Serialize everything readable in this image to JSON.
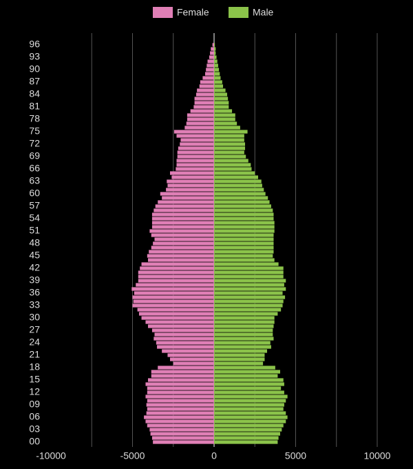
{
  "chart_data": {
    "type": "bar",
    "orientation": "horizontal",
    "categories": [
      "00",
      null,
      null,
      "03",
      null,
      null,
      "06",
      null,
      null,
      "09",
      null,
      null,
      "12",
      null,
      null,
      "15",
      null,
      null,
      "18",
      null,
      null,
      "21",
      null,
      null,
      "24",
      null,
      null,
      "27",
      null,
      null,
      "30",
      null,
      null,
      "33",
      null,
      null,
      "36",
      null,
      null,
      "39",
      null,
      null,
      "42",
      null,
      null,
      "45",
      null,
      null,
      "48",
      null,
      null,
      "51",
      null,
      null,
      "54",
      null,
      null,
      "57",
      null,
      null,
      "60",
      null,
      null,
      "63",
      null,
      null,
      "66",
      null,
      null,
      "69",
      null,
      null,
      "72",
      null,
      null,
      "75",
      null,
      null,
      "78",
      null,
      null,
      "81",
      null,
      null,
      "84",
      null,
      null,
      "87",
      null,
      null,
      "90",
      null,
      null,
      "93",
      null,
      null,
      "96"
    ],
    "series": [
      {
        "name": "Female",
        "color": "#e07fb6",
        "values": [
          -3750,
          -3800,
          -3900,
          -3950,
          -4100,
          -4200,
          -4300,
          -4150,
          -4100,
          -4150,
          -4100,
          -4200,
          -4100,
          -4100,
          -4200,
          -4050,
          -3850,
          -3850,
          -3450,
          -2500,
          -2700,
          -2850,
          -3200,
          -3500,
          -3550,
          -3700,
          -3650,
          -3800,
          -4050,
          -4200,
          -4450,
          -4600,
          -4700,
          -5000,
          -4950,
          -5000,
          -4900,
          -5050,
          -4800,
          -4650,
          -4650,
          -4650,
          -4550,
          -4450,
          -4050,
          -4100,
          -4000,
          -3850,
          -3750,
          -3650,
          -3850,
          -3950,
          -3800,
          -3800,
          -3800,
          -3800,
          -3700,
          -3600,
          -3450,
          -3200,
          -3300,
          -2950,
          -2850,
          -2900,
          -2600,
          -2700,
          -2350,
          -2300,
          -2300,
          -2250,
          -2250,
          -2200,
          -2100,
          -2050,
          -2300,
          -2450,
          -1800,
          -1700,
          -1650,
          -1650,
          -1450,
          -1250,
          -1200,
          -1200,
          -1100,
          -1050,
          -900,
          -850,
          -700,
          -550,
          -500,
          -450,
          -400,
          -300,
          -250,
          -200,
          -100
        ]
      },
      {
        "name": "Male",
        "color": "#8bc34a",
        "values": [
          3900,
          3950,
          4050,
          4150,
          4250,
          4400,
          4500,
          4400,
          4250,
          4300,
          4400,
          4500,
          4300,
          4100,
          4300,
          4250,
          3900,
          4050,
          3750,
          3000,
          3100,
          3100,
          3250,
          3500,
          3450,
          3650,
          3600,
          3600,
          3650,
          3700,
          3700,
          3900,
          4100,
          4200,
          4250,
          4350,
          4200,
          4400,
          4300,
          4400,
          4250,
          4250,
          4250,
          3950,
          3700,
          3600,
          3650,
          3650,
          3650,
          3650,
          3650,
          3700,
          3700,
          3700,
          3650,
          3650,
          3600,
          3500,
          3400,
          3300,
          3150,
          3050,
          2950,
          2900,
          2700,
          2500,
          2300,
          2250,
          2100,
          1950,
          1850,
          1900,
          1900,
          1850,
          1850,
          2050,
          1600,
          1400,
          1300,
          1300,
          1100,
          900,
          900,
          850,
          800,
          700,
          550,
          500,
          400,
          350,
          300,
          250,
          200,
          150,
          100,
          100,
          50
        ]
      }
    ],
    "xlim": [
      -10000,
      10000
    ],
    "xticks": [
      -10000,
      -5000,
      0,
      5000,
      10000
    ],
    "xgrid": [
      -7500,
      -5000,
      -2500,
      0,
      2500,
      5000,
      7500,
      10000
    ],
    "grid": true,
    "legend": "top"
  }
}
